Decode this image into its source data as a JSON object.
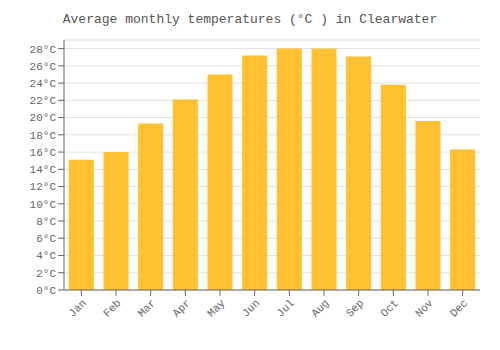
{
  "chart_data": {
    "type": "bar",
    "title": "Average monthly temperatures (°C ) in Clearwater",
    "categories": [
      "Jan",
      "Feb",
      "Mar",
      "Apr",
      "May",
      "Jun",
      "Jul",
      "Aug",
      "Sep",
      "Oct",
      "Nov",
      "Dec"
    ],
    "values": [
      15.1,
      16.0,
      19.3,
      22.1,
      25.0,
      27.2,
      28.0,
      28.0,
      27.1,
      23.8,
      19.6,
      16.3
    ],
    "color": "#FFC132",
    "ylim": [
      0,
      29
    ],
    "yticks": [
      {
        "value": 0,
        "label": "0°C"
      },
      {
        "value": 2,
        "label": "2°C"
      },
      {
        "value": 4,
        "label": "4°C"
      },
      {
        "value": 6,
        "label": "6°C"
      },
      {
        "value": 8,
        "label": "8°C"
      },
      {
        "value": 10,
        "label": "10°C"
      },
      {
        "value": 12,
        "label": "12°C"
      },
      {
        "value": 14,
        "label": "14°C"
      },
      {
        "value": 16,
        "label": "16°C"
      },
      {
        "value": 18,
        "label": "18°C"
      },
      {
        "value": 20,
        "label": "20°C"
      },
      {
        "value": 22,
        "label": "22°C"
      },
      {
        "value": 24,
        "label": "24°C"
      },
      {
        "value": 26,
        "label": "26°C"
      },
      {
        "value": 28,
        "label": "28°C"
      }
    ],
    "grid": true
  }
}
